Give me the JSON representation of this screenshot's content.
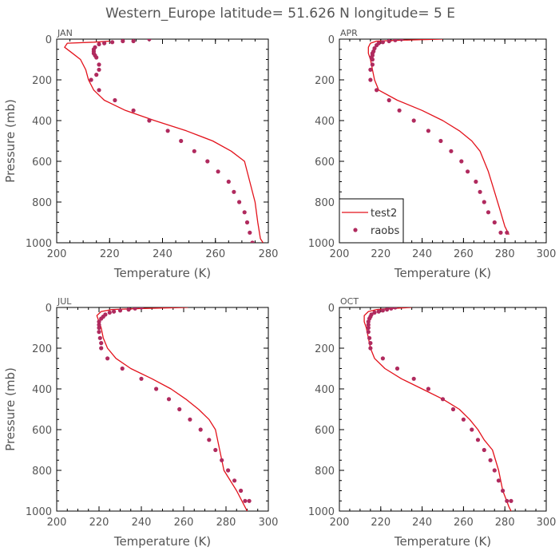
{
  "title": "Western_Europe  latitude= 51.626 N longitude= 5 E",
  "colors": {
    "model": "#e3121b",
    "obs": "#b02a5e",
    "text": "#555555",
    "axis": "#000000"
  },
  "legend": {
    "location": "APR",
    "entries": [
      {
        "label": "test2",
        "kind": "line",
        "color": "#e3121b"
      },
      {
        "label": "raobs",
        "kind": "point",
        "color": "#b02a5e"
      }
    ]
  },
  "chart_data": [
    {
      "type": "line",
      "panel": "JAN",
      "xlabel": "Temperature (K)",
      "ylabel": "Pressure (mb)",
      "xlim": [
        200,
        280
      ],
      "ylim": [
        1000,
        0
      ],
      "xticks": [
        "200",
        "220",
        "240",
        "260",
        "280"
      ],
      "yticks": [
        "0",
        "200",
        "400",
        "600",
        "800",
        "1000"
      ],
      "series": [
        {
          "name": "test2",
          "kind": "line",
          "color": "#e3121b",
          "x": [
            220,
            214,
            204,
            203,
            206,
            209,
            211,
            212,
            214,
            218,
            226,
            237,
            249,
            259,
            266,
            271,
            273,
            275,
            276,
            277,
            278
          ],
          "y": [
            10,
            15,
            20,
            40,
            70,
            100,
            150,
            200,
            250,
            300,
            350,
            400,
            450,
            500,
            550,
            600,
            700,
            800,
            900,
            980,
            1000
          ]
        },
        {
          "name": "raobs",
          "kind": "scatter",
          "color": "#b02a5e",
          "x": [
            235,
            229,
            225,
            221,
            218,
            216,
            214.5,
            214,
            214,
            214,
            214.5,
            215,
            216,
            216,
            215,
            213,
            216,
            222,
            229,
            235,
            242,
            247,
            252,
            257,
            261,
            265,
            267,
            269,
            271,
            272,
            273,
            274,
            274
          ],
          "y": [
            0,
            10,
            10,
            15,
            20,
            25,
            40,
            50,
            60,
            70,
            80,
            90,
            125,
            150,
            175,
            200,
            250,
            300,
            350,
            400,
            450,
            500,
            550,
            600,
            650,
            700,
            750,
            800,
            850,
            900,
            950,
            1000,
            1000
          ]
        }
      ]
    },
    {
      "type": "line",
      "panel": "APR",
      "xlabel": "Temperature (K)",
      "ylabel": "",
      "xlim": [
        200,
        300
      ],
      "ylim": [
        1000,
        0
      ],
      "xticks": [
        "200",
        "220",
        "240",
        "260",
        "280",
        "300"
      ],
      "yticks": [
        "0",
        "200",
        "400",
        "600",
        "800",
        "1000"
      ],
      "series": [
        {
          "name": "test2",
          "kind": "line",
          "color": "#e3121b",
          "x": [
            250,
            230,
            218,
            215,
            214,
            214,
            215,
            216,
            217,
            219,
            228,
            240,
            250,
            258,
            264,
            268,
            272,
            275,
            278,
            280,
            282
          ],
          "y": [
            0,
            5,
            10,
            20,
            40,
            70,
            100,
            150,
            200,
            250,
            300,
            350,
            400,
            450,
            500,
            550,
            650,
            750,
            850,
            920,
            960
          ]
        },
        {
          "name": "raobs",
          "kind": "scatter",
          "color": "#b02a5e",
          "x": [
            230,
            227,
            224,
            221,
            219,
            218,
            217,
            216.5,
            216,
            216,
            215.5,
            216,
            216,
            215,
            215,
            218,
            224,
            229,
            236,
            243,
            249,
            254,
            259,
            262,
            266,
            268,
            270,
            272,
            275,
            278,
            281
          ],
          "y": [
            0,
            5,
            10,
            15,
            20,
            30,
            45,
            60,
            70,
            80,
            90,
            100,
            125,
            150,
            200,
            250,
            300,
            350,
            400,
            450,
            500,
            550,
            600,
            650,
            700,
            750,
            800,
            850,
            900,
            950,
            950
          ]
        }
      ]
    },
    {
      "type": "line",
      "panel": "JUL",
      "xlabel": "Temperature (K)",
      "ylabel": "Pressure (mb)",
      "xlim": [
        200,
        300
      ],
      "ylim": [
        1000,
        0
      ],
      "xticks": [
        "200",
        "220",
        "240",
        "260",
        "280",
        "300"
      ],
      "yticks": [
        "0",
        "200",
        "400",
        "600",
        "800",
        "1000"
      ],
      "series": [
        {
          "name": "test2",
          "kind": "line",
          "color": "#e3121b",
          "x": [
            262,
            240,
            226,
            221,
            219,
            220,
            221,
            222,
            224,
            228,
            235,
            245,
            254,
            261,
            267,
            272,
            275,
            277,
            279,
            285,
            290
          ],
          "y": [
            0,
            5,
            10,
            20,
            40,
            70,
            100,
            150,
            200,
            250,
            300,
            350,
            400,
            450,
            500,
            550,
            600,
            700,
            800,
            900,
            1000
          ]
        },
        {
          "name": "raobs",
          "kind": "scatter",
          "color": "#b02a5e",
          "x": [
            240,
            237,
            234,
            230,
            227,
            225,
            223,
            222,
            221,
            220,
            220,
            220,
            220,
            220.5,
            221,
            221,
            224,
            231,
            240,
            247,
            253,
            258,
            263,
            268,
            272,
            275,
            278,
            281,
            284,
            287,
            289,
            291
          ],
          "y": [
            0,
            5,
            10,
            15,
            20,
            25,
            35,
            45,
            55,
            70,
            85,
            100,
            120,
            150,
            175,
            200,
            250,
            300,
            350,
            400,
            450,
            500,
            550,
            600,
            650,
            700,
            750,
            800,
            850,
            900,
            950,
            950
          ]
        }
      ]
    },
    {
      "type": "line",
      "panel": "OCT",
      "xlabel": "Temperature (K)",
      "ylabel": "",
      "xlim": [
        200,
        300
      ],
      "ylim": [
        1000,
        0
      ],
      "xticks": [
        "200",
        "220",
        "240",
        "260",
        "280",
        "300"
      ],
      "yticks": [
        "0",
        "200",
        "400",
        "600",
        "800",
        "1000"
      ],
      "series": [
        {
          "name": "test2",
          "kind": "line",
          "color": "#e3121b",
          "x": [
            235,
            225,
            218,
            214,
            212,
            212,
            213,
            214,
            215,
            217,
            222,
            230,
            240,
            250,
            258,
            263,
            267,
            270,
            274,
            277,
            279,
            282,
            284
          ],
          "y": [
            0,
            5,
            10,
            20,
            40,
            70,
            100,
            150,
            200,
            250,
            300,
            350,
            400,
            450,
            500,
            550,
            600,
            650,
            700,
            800,
            900,
            980,
            1020
          ]
        },
        {
          "name": "raobs",
          "kind": "scatter",
          "color": "#b02a5e",
          "x": [
            227,
            225,
            223,
            221,
            219,
            217,
            215.5,
            215,
            214.5,
            214,
            214,
            214,
            214,
            214.5,
            215,
            215,
            221,
            228,
            236,
            243,
            250,
            255,
            260,
            264,
            267,
            270,
            273,
            275,
            277,
            279,
            281,
            283
          ],
          "y": [
            0,
            5,
            10,
            15,
            20,
            25,
            35,
            45,
            55,
            70,
            85,
            100,
            120,
            150,
            175,
            200,
            250,
            300,
            350,
            400,
            450,
            500,
            550,
            600,
            650,
            700,
            750,
            800,
            850,
            900,
            950,
            950
          ]
        }
      ]
    }
  ]
}
